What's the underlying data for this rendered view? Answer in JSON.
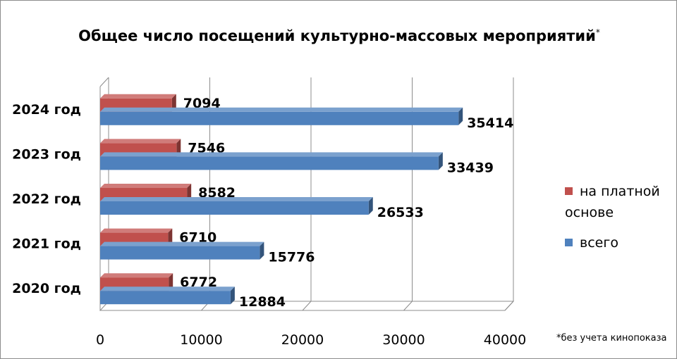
{
  "chart_data": {
    "type": "bar",
    "orientation": "horizontal",
    "title": "Общее число посещений культурно-массовых мероприятий",
    "title_note": "*",
    "categories": [
      "2020 год",
      "2021 год",
      "2022 год",
      "2023 год",
      "2024 год"
    ],
    "series": [
      {
        "name": "на платной основе",
        "color": "#c0504d",
        "values": [
          6772,
          6710,
          8582,
          7546,
          7094
        ]
      },
      {
        "name": "всего",
        "color": "#4f81bd",
        "values": [
          12884,
          15776,
          26533,
          33439,
          35414
        ]
      }
    ],
    "xlim": [
      0,
      40000
    ],
    "xticks": [
      0,
      10000,
      20000,
      30000,
      40000
    ],
    "grid": true,
    "legend_position": "right",
    "legend_lines": [
      [
        "на платной",
        "основе"
      ],
      [
        "всего"
      ]
    ],
    "footnote": "*без учета кинопоказа"
  }
}
